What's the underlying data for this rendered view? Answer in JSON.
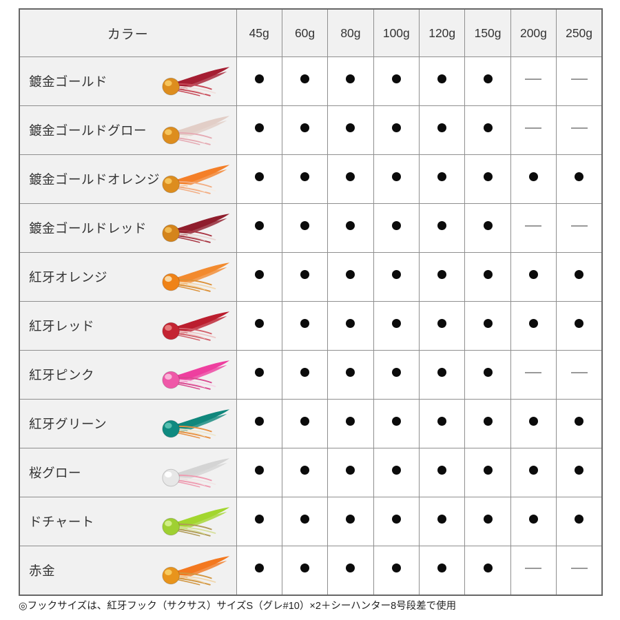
{
  "table": {
    "header": {
      "color_label": "カラー",
      "weights": [
        "45g",
        "60g",
        "80g",
        "100g",
        "120g",
        "150g",
        "200g",
        "250g"
      ]
    },
    "symbols": {
      "available": "●",
      "unavailable": "—"
    },
    "rows": [
      {
        "label": "鍍金ゴールド",
        "availability": [
          true,
          true,
          true,
          true,
          true,
          true,
          false,
          false
        ],
        "lure": {
          "head": "#dd8d1e",
          "headHi": "#f7c75f",
          "tail": "#a51e32",
          "skirtA": "#c84a58",
          "skirtB": "#f0dfdc"
        }
      },
      {
        "label": "鍍金ゴールドグロー",
        "availability": [
          true,
          true,
          true,
          true,
          true,
          true,
          false,
          false
        ],
        "lure": {
          "head": "#dd8d1e",
          "headHi": "#f7c75f",
          "tail": "#e2cec7",
          "skirtA": "#e5a9b2",
          "skirtB": "#f5efec"
        }
      },
      {
        "label": "鍍金ゴールドオレンジ",
        "availability": [
          true,
          true,
          true,
          true,
          true,
          true,
          true,
          true
        ],
        "lure": {
          "head": "#dd8d1e",
          "headHi": "#f7c75f",
          "tail": "#f47f28",
          "skirtA": "#f2ad82",
          "skirtB": "#f6ede4"
        }
      },
      {
        "label": "鍍金ゴールドレッド",
        "availability": [
          true,
          true,
          true,
          true,
          true,
          true,
          false,
          false
        ],
        "lure": {
          "head": "#d4841b",
          "headHi": "#f2bd55",
          "tail": "#8f1d2c",
          "skirtA": "#a83442",
          "skirtB": "#e8d6d3"
        }
      },
      {
        "label": "紅牙オレンジ",
        "availability": [
          true,
          true,
          true,
          true,
          true,
          true,
          true,
          true
        ],
        "lure": {
          "head": "#ef8318",
          "headHi": "#f9dcad",
          "tail": "#f28a2e",
          "skirtA": "#dc9138",
          "skirtB": "#f3d9b1"
        }
      },
      {
        "label": "紅牙レッド",
        "availability": [
          true,
          true,
          true,
          true,
          true,
          true,
          true,
          true
        ],
        "lure": {
          "head": "#c42432",
          "headHi": "#e87f7f",
          "tail": "#bb1e2e",
          "skirtA": "#d2606a",
          "skirtB": "#eec7c7"
        }
      },
      {
        "label": "紅牙ピンク",
        "availability": [
          true,
          true,
          true,
          true,
          true,
          true,
          false,
          false
        ],
        "lure": {
          "head": "#ef58a8",
          "headHi": "#f9bada",
          "tail": "#ee3f9f",
          "skirtA": "#d9488f",
          "skirtB": "#f6d6e8"
        }
      },
      {
        "label": "紅牙グリーン",
        "availability": [
          true,
          true,
          true,
          true,
          true,
          true,
          true,
          true
        ],
        "lure": {
          "head": "#0f8a80",
          "headHi": "#5cc2b2",
          "tail": "#10877c",
          "skirtA": "#e89040",
          "skirtB": "#eee7cf"
        }
      },
      {
        "label": "桜グロー",
        "availability": [
          true,
          true,
          true,
          true,
          true,
          true,
          true,
          true
        ],
        "lure": {
          "head": "#e7e7e7",
          "headHi": "#ffffff",
          "tail": "#d4d4d4",
          "skirtA": "#ef9ab0",
          "skirtB": "#f1e6e6"
        }
      },
      {
        "label": "ドチャート",
        "availability": [
          true,
          true,
          true,
          true,
          true,
          true,
          true,
          true
        ],
        "lure": {
          "head": "#9fd032",
          "headHi": "#d4ef8c",
          "tail": "#a2d62e",
          "skirtA": "#b09a55",
          "skirtB": "#d7e09e"
        }
      },
      {
        "label": "赤金",
        "availability": [
          true,
          true,
          true,
          true,
          true,
          true,
          false,
          false
        ],
        "lure": {
          "head": "#e8941c",
          "headHi": "#f8cc62",
          "tail": "#f3781f",
          "skirtA": "#d1953e",
          "skirtB": "#f0d7ae"
        }
      }
    ]
  },
  "footnote": "◎フックサイズは、紅牙フック（サクサス）サイズS（グレ#10）×2＋シーハンター8号段差で使用",
  "colors": {
    "header_bg": "#f1f1f1",
    "border_inner": "#8e8e8e",
    "border_outer": "#666666",
    "dot": "#0b0b0b",
    "dash": "#999999",
    "text": "#333333"
  }
}
